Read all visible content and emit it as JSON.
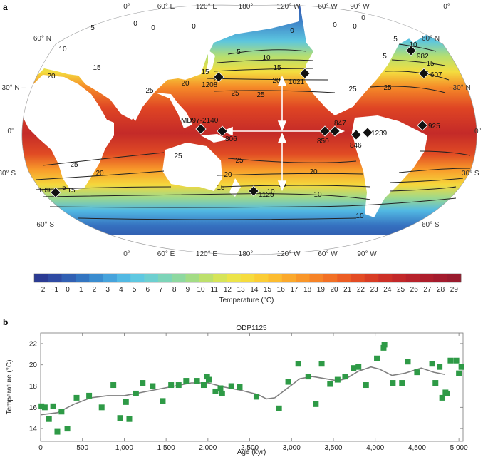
{
  "panel_a": {
    "label": "a",
    "top_longitudes": [
      "0°",
      "60° E",
      "120° E",
      "180°",
      "120° W",
      "60° W",
      "90° W",
      "0°"
    ],
    "bottom_longitudes": [
      "0°",
      "60° E",
      "120° E",
      "180°",
      "120° W",
      "60° W",
      "90° W"
    ],
    "left_latitudes": [
      "60° N",
      "30° N –",
      "0°",
      "30° S",
      "60° S"
    ],
    "right_latitudes": [
      "60° N",
      "–30° N",
      "0°",
      "30° S",
      "60° S"
    ],
    "contour_labels": [
      "0",
      "0",
      "0",
      "0",
      "0",
      "0",
      "0",
      "5",
      "5",
      "5",
      "5",
      "5",
      "10",
      "10",
      "10",
      "10",
      "10",
      "10",
      "15",
      "15",
      "15",
      "15",
      "15",
      "15",
      "15",
      "20",
      "20",
      "20",
      "20",
      "20",
      "20",
      "20",
      "20",
      "25",
      "25",
      "25",
      "25",
      "25",
      "25",
      "25",
      "25"
    ],
    "sites": [
      {
        "name": "982"
      },
      {
        "name": "607"
      },
      {
        "name": "1021"
      },
      {
        "name": "1208"
      },
      {
        "name": "MD97-2140"
      },
      {
        "name": "806"
      },
      {
        "name": "847"
      },
      {
        "name": "850"
      },
      {
        "name": "846"
      },
      {
        "name": "1239"
      },
      {
        "name": "925"
      },
      {
        "name": "1090"
      },
      {
        "name": "1125"
      }
    ],
    "colorbar": {
      "ticks": [
        "−2",
        "−1",
        "0",
        "1",
        "2",
        "3",
        "4",
        "5",
        "6",
        "7",
        "8",
        "9",
        "10",
        "11",
        "12",
        "13",
        "14",
        "15",
        "16",
        "17",
        "18",
        "19",
        "20",
        "21",
        "22",
        "23",
        "24",
        "25",
        "26",
        "27",
        "28",
        "29"
      ],
      "label": "Temperature (°C)",
      "colors": [
        "#2b3b93",
        "#2f4ba3",
        "#3160b3",
        "#3375c1",
        "#3a8ccf",
        "#46a3dc",
        "#52b9e3",
        "#5fc8e1",
        "#6dcfd0",
        "#7dd4b8",
        "#8ed8a0",
        "#a3dc85",
        "#bde06c",
        "#d6e458",
        "#ece449",
        "#f6dc3e",
        "#fbcd35",
        "#fcbc30",
        "#fba92c",
        "#f99629",
        "#f68327",
        "#f27025",
        "#ec5d24",
        "#e34c24",
        "#d83d25",
        "#cc3027",
        "#c22829",
        "#b7222b",
        "#ad1e2c",
        "#a31b2d",
        "#991a2d"
      ]
    }
  },
  "panel_b": {
    "label": "b",
    "chart_data": {
      "type": "scatter",
      "title": "ODP1125",
      "xlabel": "Age (kyr)",
      "ylabel": "Temperature (°C)",
      "xlim": [
        0,
        5050
      ],
      "ylim": [
        12.8,
        23.0
      ],
      "xticks": [
        0,
        500,
        1000,
        1500,
        2000,
        2500,
        3000,
        3500,
        4000,
        4500,
        5000
      ],
      "xtick_labels": [
        "0",
        "500",
        "1,000",
        "1,500",
        "2,000",
        "2,500",
        "3,000",
        "3,500",
        "4,000",
        "4,500",
        "5,000"
      ],
      "yticks": [
        14,
        16,
        18,
        20,
        22
      ],
      "marker_color": "#2e9a46",
      "line_color": "#7f7f7f",
      "points": [
        [
          10,
          16.1
        ],
        [
          50,
          16.0
        ],
        [
          100,
          14.9
        ],
        [
          150,
          16.1
        ],
        [
          200,
          13.7
        ],
        [
          250,
          15.6
        ],
        [
          320,
          14.0
        ],
        [
          430,
          16.9
        ],
        [
          580,
          17.1
        ],
        [
          730,
          16.0
        ],
        [
          870,
          18.1
        ],
        [
          950,
          15.0
        ],
        [
          1020,
          16.5
        ],
        [
          1060,
          14.9
        ],
        [
          1140,
          17.3
        ],
        [
          1220,
          18.3
        ],
        [
          1340,
          18.0
        ],
        [
          1460,
          16.6
        ],
        [
          1560,
          18.1
        ],
        [
          1650,
          18.1
        ],
        [
          1740,
          18.5
        ],
        [
          1870,
          18.5
        ],
        [
          1950,
          18.1
        ],
        [
          1990,
          18.9
        ],
        [
          2010,
          18.6
        ],
        [
          2090,
          17.5
        ],
        [
          2150,
          17.8
        ],
        [
          2170,
          17.3
        ],
        [
          2280,
          18.0
        ],
        [
          2380,
          17.9
        ],
        [
          2580,
          17.0
        ],
        [
          2850,
          15.9
        ],
        [
          2960,
          18.4
        ],
        [
          3080,
          20.1
        ],
        [
          3200,
          18.9
        ],
        [
          3290,
          16.3
        ],
        [
          3360,
          20.1
        ],
        [
          3460,
          18.2
        ],
        [
          3550,
          18.6
        ],
        [
          3640,
          18.9
        ],
        [
          3740,
          19.7
        ],
        [
          3800,
          19.8
        ],
        [
          3890,
          18.1
        ],
        [
          4020,
          20.6
        ],
        [
          4100,
          21.6
        ],
        [
          4110,
          21.9
        ],
        [
          4210,
          18.3
        ],
        [
          4320,
          18.3
        ],
        [
          4390,
          20.3
        ],
        [
          4500,
          19.3
        ],
        [
          4680,
          20.1
        ],
        [
          4720,
          18.3
        ],
        [
          4770,
          19.8
        ],
        [
          4800,
          16.9
        ],
        [
          4840,
          17.4
        ],
        [
          4860,
          17.3
        ],
        [
          4900,
          20.4
        ],
        [
          4970,
          20.4
        ],
        [
          5000,
          19.2
        ],
        [
          5030,
          19.8
        ]
      ],
      "smooth": [
        [
          0,
          15.3
        ],
        [
          200,
          15.5
        ],
        [
          400,
          16.3
        ],
        [
          600,
          16.9
        ],
        [
          800,
          17.1
        ],
        [
          1000,
          17.1
        ],
        [
          1200,
          17.4
        ],
        [
          1400,
          17.7
        ],
        [
          1600,
          18.0
        ],
        [
          1800,
          18.3
        ],
        [
          2000,
          18.3
        ],
        [
          2200,
          17.9
        ],
        [
          2400,
          17.6
        ],
        [
          2600,
          17.2
        ],
        [
          2700,
          16.8
        ],
        [
          2800,
          16.9
        ],
        [
          2950,
          17.8
        ],
        [
          3100,
          18.7
        ],
        [
          3250,
          18.9
        ],
        [
          3400,
          18.7
        ],
        [
          3550,
          18.5
        ],
        [
          3650,
          18.7
        ],
        [
          3800,
          19.4
        ],
        [
          3950,
          19.8
        ],
        [
          4050,
          19.6
        ],
        [
          4200,
          19.0
        ],
        [
          4350,
          19.2
        ],
        [
          4550,
          19.7
        ],
        [
          4700,
          19.3
        ],
        [
          4830,
          19.1
        ]
      ]
    }
  }
}
